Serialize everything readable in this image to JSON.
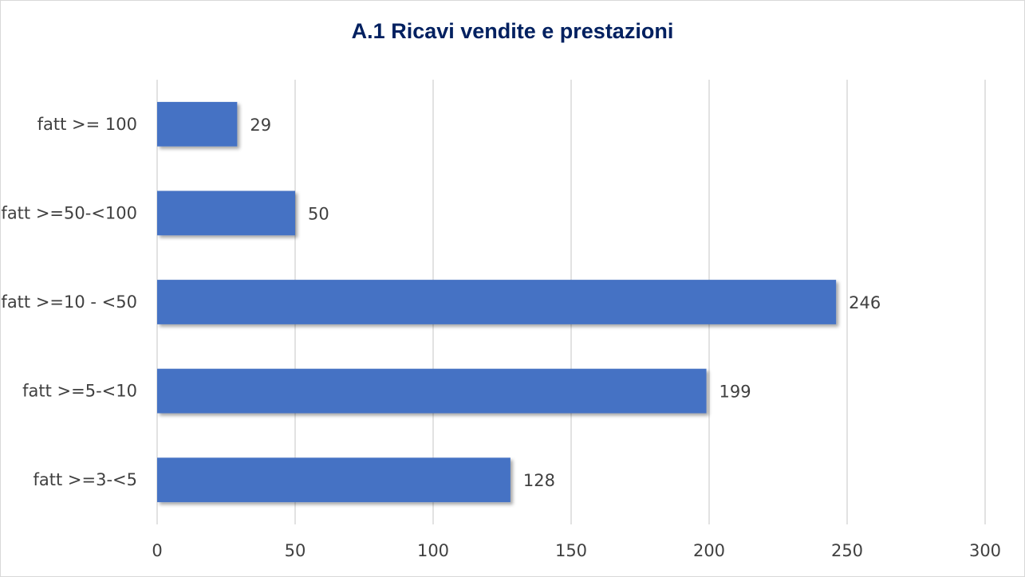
{
  "chart_data": {
    "type": "bar",
    "orientation": "horizontal",
    "title": "A.1 Ricavi vendite e prestazioni",
    "xlabel": "",
    "ylabel": "",
    "categories": [
      "fatt >= 100",
      "fatt >=50-<100",
      "fatt >=10 - <50",
      "fatt >=5-<10",
      "fatt >=3-<5"
    ],
    "values": [
      29,
      50,
      246,
      199,
      128
    ],
    "xlim": [
      0,
      300
    ],
    "xticks": [
      "0",
      "50",
      "100",
      "150",
      "200",
      "250",
      "300"
    ],
    "grid": "vertical",
    "legend": "none",
    "data_labels": true,
    "colors": {
      "bar": "#4472C4",
      "title": "#002060",
      "grid": "#d9d9d9",
      "text": "#404040"
    }
  }
}
